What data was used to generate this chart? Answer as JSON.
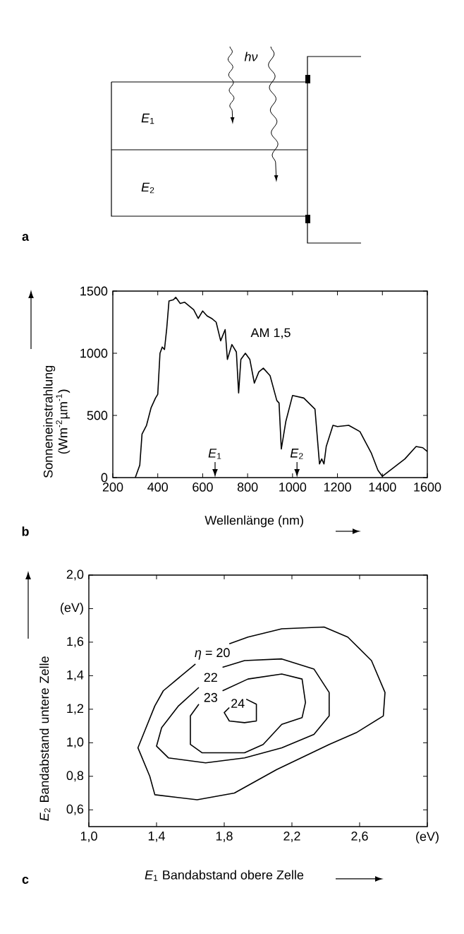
{
  "chart_data": [
    {
      "type": "other",
      "annotations": [
        "*hν*",
        "*E*$_{1}$",
        "*E*$_{2}$",
        "a"
      ]
    },
    {
      "type": "line",
      "color": "#000000",
      "x": [
        300,
        320,
        330,
        350,
        370,
        390,
        400,
        410,
        420,
        430,
        440,
        450,
        470,
        480,
        500,
        520,
        540,
        560,
        580,
        600,
        620,
        640,
        660,
        680,
        700,
        710,
        730,
        750,
        760,
        770,
        790,
        810,
        830,
        850,
        870,
        900,
        930,
        940,
        950,
        970,
        1000,
        1050,
        1100,
        1120,
        1130,
        1140,
        1150,
        1180,
        1200,
        1250,
        1300,
        1350,
        1380,
        1400,
        1450,
        1500,
        1550,
        1580,
        1600
      ],
      "values": [
        0,
        100,
        350,
        420,
        560,
        640,
        670,
        1000,
        1050,
        1030,
        1200,
        1420,
        1430,
        1450,
        1400,
        1410,
        1380,
        1350,
        1280,
        1340,
        1300,
        1280,
        1250,
        1100,
        1190,
        950,
        1070,
        1010,
        680,
        950,
        1000,
        950,
        760,
        850,
        880,
        820,
        620,
        600,
        230,
        450,
        660,
        640,
        550,
        110,
        150,
        110,
        250,
        420,
        410,
        420,
        370,
        200,
        60,
        10,
        80,
        150,
        250,
        240,
        210
      ],
      "xlim": [
        200,
        1600
      ],
      "ylim": [
        0,
        1500
      ],
      "xticks": [
        200,
        400,
        600,
        800,
        1000,
        1200,
        1400,
        1600
      ],
      "yticks": [
        0,
        500,
        1000,
        1500
      ],
      "xlabel": "Wellenlänge (nm)",
      "ylabel": "Sonneneinstrahlung (Wm$^{-2}$µm$^{-1}$)",
      "annotations": [
        "AM 1,5",
        "*E*$_{1}$",
        "*E*$_{2}$",
        "b"
      ]
    },
    {
      "type": "line",
      "series": [
        {
          "name": "*η* = 20",
          "color": "#000000",
          "x": [
            1.83,
            1.94,
            2.14,
            2.39,
            2.53,
            2.67,
            2.75,
            2.74,
            2.58,
            2.42,
            2.11,
            1.86,
            1.64,
            1.39,
            1.36,
            1.29,
            1.39,
            1.44,
            1.63
          ],
          "values": [
            1.59,
            1.63,
            1.68,
            1.69,
            1.63,
            1.49,
            1.3,
            1.16,
            1.06,
            0.99,
            0.84,
            0.7,
            0.66,
            0.69,
            0.8,
            0.97,
            1.22,
            1.31,
            1.47
          ]
        },
        {
          "name": "22",
          "color": "#000000",
          "x": [
            1.79,
            1.92,
            2.14,
            2.33,
            2.42,
            2.42,
            2.33,
            2.14,
            1.92,
            1.69,
            1.47,
            1.4,
            1.43,
            1.53,
            1.65
          ],
          "values": [
            1.45,
            1.49,
            1.5,
            1.44,
            1.3,
            1.16,
            1.05,
            0.97,
            0.91,
            0.88,
            0.91,
            0.98,
            1.09,
            1.22,
            1.33
          ]
        },
        {
          "name": "23",
          "color": "#000000",
          "x": [
            1.79,
            1.94,
            2.14,
            2.26,
            2.28,
            2.26,
            2.14,
            2.03,
            1.92,
            1.67,
            1.6,
            1.6,
            1.65
          ],
          "values": [
            1.31,
            1.38,
            1.41,
            1.38,
            1.24,
            1.15,
            1.11,
            0.99,
            0.94,
            0.94,
            0.99,
            1.16,
            1.23
          ]
        },
        {
          "name": "24",
          "color": "#000000",
          "x": [
            1.93,
            1.99,
            1.99,
            1.92,
            1.83,
            1.8,
            1.83
          ],
          "values": [
            1.26,
            1.23,
            1.13,
            1.12,
            1.13,
            1.18,
            1.21
          ]
        }
      ],
      "xlim": [
        1.0,
        3.0
      ],
      "ylim": [
        0.5,
        2.0
      ],
      "xticks": [
        {
          "value": 1.0,
          "label": "1,0"
        },
        {
          "value": 1.4,
          "label": "1,4"
        },
        {
          "value": 1.8,
          "label": "1,8"
        },
        {
          "value": 2.2,
          "label": "2,2"
        },
        {
          "value": 2.6,
          "label": "2,6"
        },
        {
          "value": 3.0,
          "label": "(eV)"
        }
      ],
      "yticks": [
        {
          "value": 0.6,
          "label": "0,6"
        },
        {
          "value": 0.8,
          "label": "0,8"
        },
        {
          "value": 1.0,
          "label": "1,0"
        },
        {
          "value": 1.2,
          "label": "1,2"
        },
        {
          "value": 1.4,
          "label": "1,4"
        },
        {
          "value": 1.6,
          "label": "1,6"
        },
        {
          "value": 1.8,
          "label": "(eV)"
        },
        {
          "value": 2.0,
          "label": "2,0"
        }
      ],
      "xlabel": "*E*$_{1}$ Bandabstand obere Zelle",
      "ylabel": "*E*$_{2}$ Bandabstand untere Zelle",
      "annotations": [
        "c"
      ]
    }
  ]
}
